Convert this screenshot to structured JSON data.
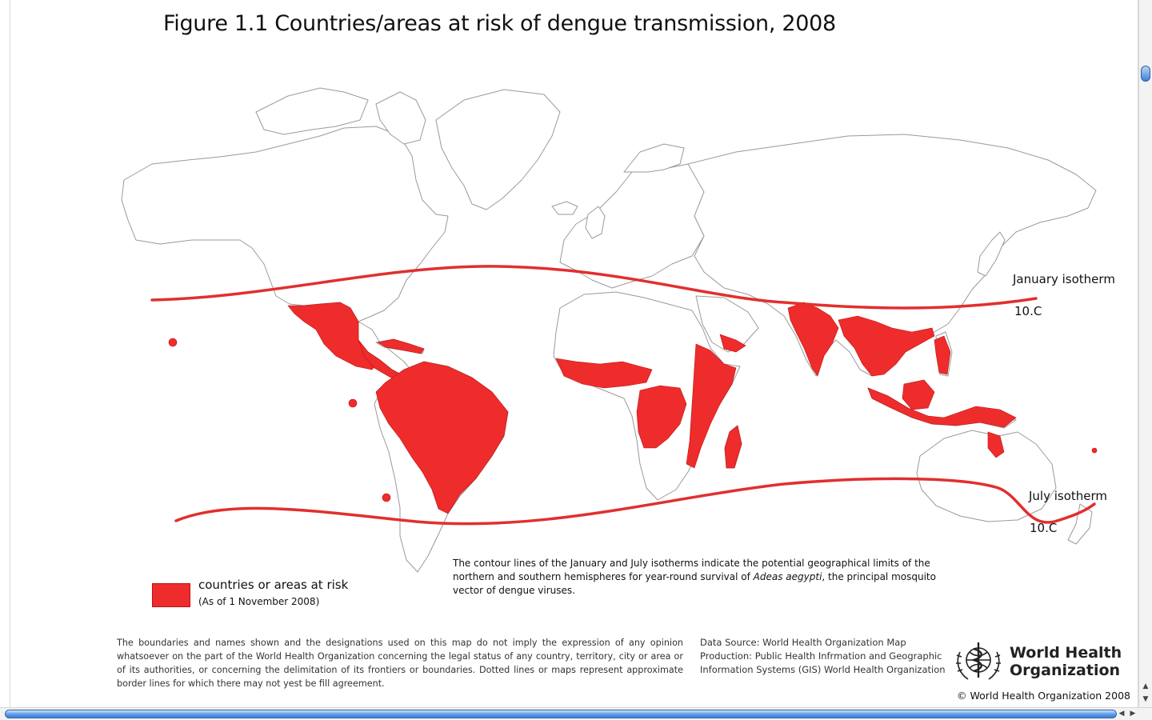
{
  "title": "Figure 1.1 Countries/areas at risk of dengue transmission, 2008",
  "map": {
    "january_isotherm": {
      "label": "January isotherm",
      "value": "10.C"
    },
    "july_isotherm": {
      "label": "July isotherm",
      "value": "10.C"
    },
    "risk_color": "#ee2c2c",
    "land_outline_color": "#9a9a9a"
  },
  "caption": {
    "before": "The contour lines of the January and July isotherms indicate the potential geographical limits of the northern and southern hemispheres for year-round survival of ",
    "species": "Adeas aegypti",
    "after": ", the principal mosquito vector of dengue viruses."
  },
  "legend": {
    "label": "countries or areas at risk",
    "date": "(As of 1 November 2008)",
    "color": "#ee2c2c"
  },
  "disclaimer": "The boundaries and names shown and the designations used on this map do not imply the expression of any opinion whatsoever on the part of the World Health Organization concerning the legal status of any country, territory, city or area or of its authorities, or concerning the delimitation of its frontiers or boundaries. Dotted lines or maps represent approximate border lines for which there may not yest be fill agreement.",
  "source": {
    "line1": "Data Source: World Health Organization Map",
    "line2": "Production: Public Health Infrmation and Geographic",
    "line3": "Information Systems (GIS) World Health Organization"
  },
  "organization": {
    "name_line1": "World Health",
    "name_line2": "Organization",
    "copyright": "© World Health Organization 2008"
  }
}
